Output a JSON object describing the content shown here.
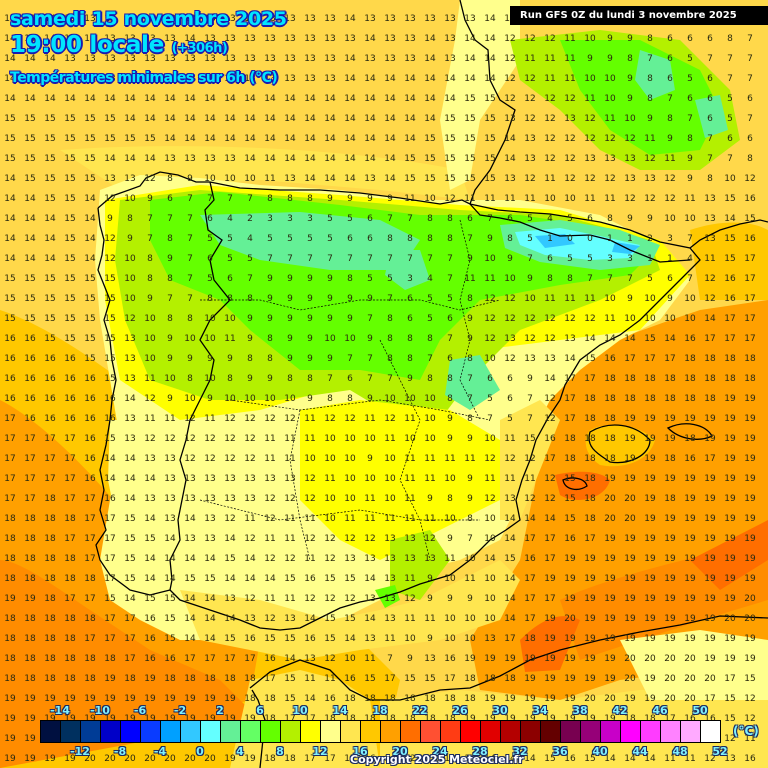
{
  "header": {
    "date_line": "samedi 15 novembre 2025",
    "time_line": "19:00 locale",
    "lead_time": "(+306h)",
    "parameter": "Températures minimales sur 6h (°C)"
  },
  "run_banner": "Run GFS 0Z du lundi 3 novembre 2025",
  "copyright": "Copyright 2025 Meteociel.fr",
  "legend": {
    "unit": "(°C)",
    "colors": [
      "#001040",
      "#00305f",
      "#003c96",
      "#0000c8",
      "#0000ff",
      "#0a3cff",
      "#00a0ff",
      "#32c8ff",
      "#64ffff",
      "#64f096",
      "#64ff64",
      "#64ff00",
      "#b4f000",
      "#ffff00",
      "#ffff8c",
      "#ffe650",
      "#ffc800",
      "#ffa000",
      "#ff6e00",
      "#ff5032",
      "#ff3c14",
      "#ff0000",
      "#e10000",
      "#b40000",
      "#8c0000",
      "#640000",
      "#780050",
      "#960078",
      "#c800c8",
      "#ff00ff",
      "#ff3cff",
      "#ff82ff",
      "#ffaaff",
      "#ffffff"
    ],
    "top_labels": [
      "-14",
      "-10",
      "-6",
      "-2",
      "2",
      "6",
      "10",
      "14",
      "18",
      "22",
      "26",
      "30",
      "34",
      "38",
      "42",
      "46",
      "50"
    ],
    "bottom_labels": [
      "-12",
      "-8",
      "-4",
      "0",
      "4",
      "8",
      "12",
      "16",
      "20",
      "24",
      "28",
      "32",
      "36",
      "40",
      "44",
      "48",
      "52"
    ]
  },
  "map": {
    "region": "Péninsule Ibérique",
    "field": "Tmin 6h",
    "grid_origin": [
      6,
      20
    ],
    "grid_step": 20,
    "rows": [
      "13 13 14 13 13 13 14 13 13 13 13 13 14 13 13 13 13 14 13 13 13 13 13 13 14 12 12 12 11 10 10 10 8 8 9 9 9 9",
      "14 14 14 14 14 13 13 13 13 14 13 13 13 13 13 13 13 13 14 13 13 14 13 14 14 12 12 12 11 10 9 9 8 6 6 6 8 7",
      "14 14 14 13 13 13 13 13 13 13 13 13 13 13 13 13 13 14 13 13 13 14 13 14 14 12 11 11 11 9 9 8 7 6 5 7 7 7",
      "14 14 14 14 14 13 13 13 13 13 13 13 13 13 13 13 13 14 14 14 14 14 14 14 14 12 12 11 11 10 10 9 8 6 5 6 7 7",
      "14 14 14 14 14 14 14 14 14 14 14 14 14 14 14 14 14 14 14 14 14 14 14 15 15 12 12 12 12 11 10 9 8 7 6 6 5 6",
      "15 15 15 15 15 15 14 14 14 14 14 14 14 14 14 14 14 14 14 14 14 14 15 15 15 13 12 12 13 12 11 10 9 8 7 6 5 7",
      "15 15 15 15 15 15 15 15 14 14 14 14 14 14 14 14 14 14 14 14 14 15 15 15 15 14 13 12 12 12 12 12 11 9 8 7 6 6",
      "15 15 15 15 15 14 14 14 13 13 13 13 14 14 14 14 14 14 14 14 15 15 15 15 15 14 13 12 12 13 13 13 12 11 9 7 7 8",
      "14 15 15 15 15 13 13 12 8 9 10 10 10 11 13 14 14 14 13 14 15 15 15 15 15 13 12 11 12 12 12 13 13 12 9 8 10 12",
      "14 14 15 15 14 12 10 9 6 7 7 7 7 8 8 8 9 9 9 9 11 10 12 11 11 11 11 10 10 11 11 12 12 12 11 13 15 16",
      "14 14 14 15 14 9 8 7 7 7 6 4 2 3 3 3 5 5 6 7 7 8 8 6 7 6 5 4 5 6 8 9 9 10 10 13 14 15",
      "14 14 14 15 14 12 9 7 8 7 5 5 4 5 5 5 5 6 6 8 8 8 8 7 9 8 5 1 0 0 1 1 2 3 7 13 15 16",
      "14 14 14 15 14 12 10 8 9 7 6 5 5 7 7 7 7 7 7 7 7 7 7 9 10 9 7 6 5 5 3 3 1 1 4 11 15 17",
      "15 15 15 15 15 15 10 8 8 7 5 6 7 9 9 9 9 8 5 5 3 4 7 11 11 10 9 8 8 7 7 7 5 6 7 12 16 17",
      "15 15 15 15 15 15 10 9 7 7 8 8 8 9 9 9 9 9 9 7 6 5 5 8 12 12 10 11 11 11 10 9 10 9 10 12 16 17",
      "15 15 15 15 15 15 12 10 8 8 10 10 9 9 9 9 9 9 7 8 6 5 6 9 12 12 12 12 12 12 11 10 10 10 10 14 17 17",
      "16 16 15 15 15 15 13 10 9 10 10 11 9 8 9 9 10 10 9 8 8 8 7 9 12 13 12 12 13 14 14 14 15 14 16 17 17 17",
      "16 16 16 16 15 15 13 10 9 9 9 9 8 8 9 9 9 7 7 8 8 7 6 8 10 12 13 13 14 15 16 17 17 17 18 18 18 18",
      "16 16 16 16 16 15 13 11 10 8 10 8 9 9 8 8 7 6 7 7 9 8 8 7 6 6 9 14 17 17 18 18 18 18 18 18 18 18",
      "16 16 16 16 16 16 14 12 9 10 9 10 10 10 10 9 8 8 9 10 10 10 8 7 5 6 7 12 17 18 18 18 18 18 18 18 19 19",
      "17 16 16 16 16 16 13 11 11 12 11 12 12 12 12 11 12 12 11 12 11 10 9 8 7 5 7 12 17 18 18 19 19 19 19 19 19 19",
      "17 17 17 17 16 15 13 12 12 12 12 12 12 11 11 11 10 10 10 11 10 10 9 9 10 11 15 16 18 18 18 19 19 19 18 19 19 19",
      "17 17 17 17 16 14 14 13 13 12 12 12 12 11 11 10 10 10 9 10 11 11 11 11 12 12 12 17 18 18 18 19 19 18 16 17 19 19",
      "17 17 17 17 16 14 14 14 13 13 13 13 13 13 13 12 11 10 10 10 11 11 10 9 11 11 11 12 15 18 19 19 19 19 19 19 19 19",
      "17 17 18 17 17 16 14 13 13 13 13 13 13 12 12 12 10 10 11 10 11 9 8 9 12 13 12 12 15 18 20 20 19 18 19 19 19 19",
      "18 18 18 18 17 17 15 14 13 14 13 12 11 12 11 11 10 11 11 11 11 11 10 8 10 14 14 14 15 18 20 20 19 19 19 19 19 19",
      "18 18 18 17 17 17 15 15 14 13 13 14 12 11 11 12 12 12 12 13 13 12 9 7 10 14 17 17 16 17 19 19 19 19 19 19 19 19",
      "18 18 18 18 17 17 15 14 14 14 14 15 14 12 12 11 12 13 13 13 13 13 11 10 14 15 16 17 19 19 19 19 19 19 19 19 19 19",
      "18 18 18 18 18 17 15 14 14 15 15 14 14 14 15 16 15 15 14 13 11 9 10 11 10 14 17 19 19 19 19 19 19 19 19 19 19 19",
      "19 19 18 17 17 15 14 15 15 14 14 13 12 11 11 12 12 12 13 13 12 9 9 9 10 14 17 17 19 19 19 19 19 19 19 19 19 20",
      "18 18 18 18 18 17 17 16 15 14 14 14 13 12 13 14 15 15 14 13 11 11 10 10 10 14 17 19 20 19 19 19 19 19 19 19 20 20",
      "18 18 18 18 17 17 17 16 15 14 14 15 16 15 15 16 15 14 13 11 10 9 10 10 13 17 18 19 19 19 19 19 19 19 19 19 19 19",
      "18 18 18 18 18 18 17 16 16 17 17 17 17 16 14 13 12 10 11 7 9 13 16 19 19 19 19 19 19 19 19 20 20 20 20 19 19 19",
      "18 18 18 18 18 19 18 19 18 18 18 18 18 17 15 11 11 16 15 17 15 15 17 18 18 18 19 19 19 19 19 20 19 20 20 20 17 15",
      "19 19 19 19 19 19 19 19 19 19 19 19 18 18 15 14 16 18 18 18 18 18 18 18 19 19 19 19 19 20 20 19 19 20 20 17 15 12",
      "19 19 19 19 19 19 19 19 19 19 19 19 19 18 17 17 18 18 18 18 18 18 18 19 19 19 19 19 19 19 19 18 18 17 16 16 15 12",
      "19 19 19 19 19 19 19 19 19 19 19 19 19 19 17 16 18 18 19 19 19 19 19 19 19 19 19 19 20 19 19 17 15 15 15 14 12 11",
      "19 19 19 19 20 20 20 20 20 20 20 19 19 18 18 17 17 17 16 14 12 13 13 13 14 14 14 15 16 15 14 14 14 11 11 12 13 16"
    ]
  }
}
